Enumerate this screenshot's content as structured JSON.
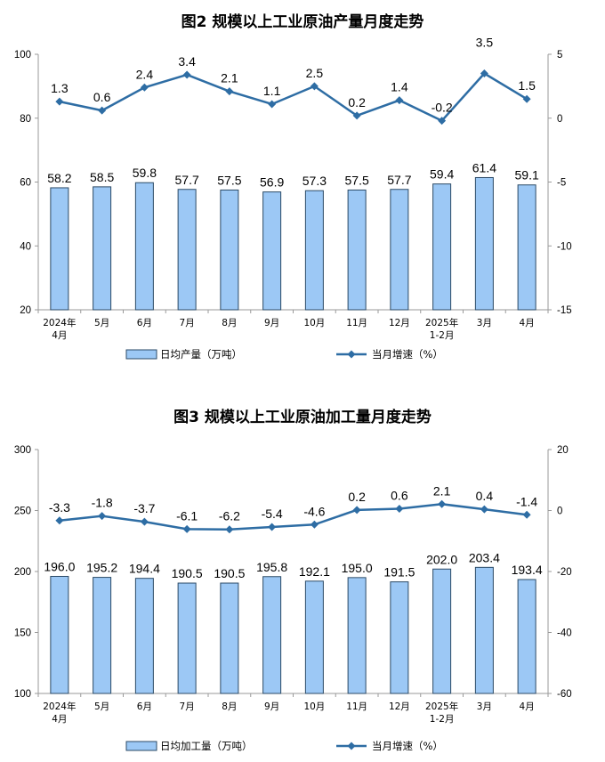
{
  "chart_data": [
    {
      "type": "bar",
      "title": "图2  规模以上工业原油产量月度走势",
      "categories": [
        [
          "2024年",
          "4月"
        ],
        [
          "5月"
        ],
        [
          "6月"
        ],
        [
          "7月"
        ],
        [
          "8月"
        ],
        [
          "9月"
        ],
        [
          "10月"
        ],
        [
          "11月"
        ],
        [
          "12月"
        ],
        [
          "2025年",
          "1-2月"
        ],
        [
          "3月"
        ],
        [
          "4月"
        ]
      ],
      "series": [
        {
          "name": "日均产量（万吨）",
          "kind": "bar",
          "axis": "left",
          "values": [
            58.2,
            58.5,
            59.8,
            57.7,
            57.5,
            56.9,
            57.3,
            57.5,
            57.7,
            59.4,
            61.4,
            59.1
          ]
        },
        {
          "name": "当月增速（%）",
          "kind": "line",
          "axis": "right",
          "values": [
            1.3,
            0.6,
            2.4,
            3.4,
            2.1,
            1.1,
            2.5,
            0.2,
            1.4,
            -0.2,
            3.5,
            1.5
          ]
        }
      ],
      "ylim_left": [
        20,
        100
      ],
      "yticks_left": [
        "20",
        "40",
        "60",
        "80",
        "100"
      ],
      "ylim_right": [
        -15,
        5
      ],
      "yticks_right": [
        "-15",
        "-10",
        "-5",
        "0",
        "5"
      ],
      "legend": [
        "日均产量（万吨）",
        "当月增速（%）"
      ],
      "colors": {
        "bar_fill": "#9cc8f5",
        "bar_stroke": "#2b4a66",
        "line": "#2e6da4",
        "axis": "#9a9a9a"
      }
    },
    {
      "type": "bar",
      "title": "图3  规模以上工业原油加工量月度走势",
      "categories": [
        [
          "2024年",
          "4月"
        ],
        [
          "5月"
        ],
        [
          "6月"
        ],
        [
          "7月"
        ],
        [
          "8月"
        ],
        [
          "9月"
        ],
        [
          "10月"
        ],
        [
          "11月"
        ],
        [
          "12月"
        ],
        [
          "2025年",
          "1-2月"
        ],
        [
          "3月"
        ],
        [
          "4月"
        ]
      ],
      "series": [
        {
          "name": "日均加工量（万吨）",
          "kind": "bar",
          "axis": "left",
          "values": [
            196.0,
            195.2,
            194.4,
            190.5,
            190.5,
            195.8,
            192.1,
            195.0,
            191.5,
            202.0,
            203.4,
            193.4
          ]
        },
        {
          "name": "当月增速（%）",
          "kind": "line",
          "axis": "right",
          "values": [
            -3.3,
            -1.8,
            -3.7,
            -6.1,
            -6.2,
            -5.4,
            -4.6,
            0.2,
            0.6,
            2.1,
            0.4,
            -1.4
          ]
        }
      ],
      "ylim_left": [
        100,
        300
      ],
      "yticks_left": [
        "100",
        "150",
        "200",
        "250",
        "300"
      ],
      "ylim_right": [
        -60,
        20
      ],
      "yticks_right": [
        "-60",
        "-40",
        "-20",
        "0",
        "20"
      ],
      "legend": [
        "日均加工量（万吨）",
        "当月增速（%）"
      ],
      "colors": {
        "bar_fill": "#9cc8f5",
        "bar_stroke": "#2b4a66",
        "line": "#2e6da4",
        "axis": "#9a9a9a"
      }
    }
  ]
}
